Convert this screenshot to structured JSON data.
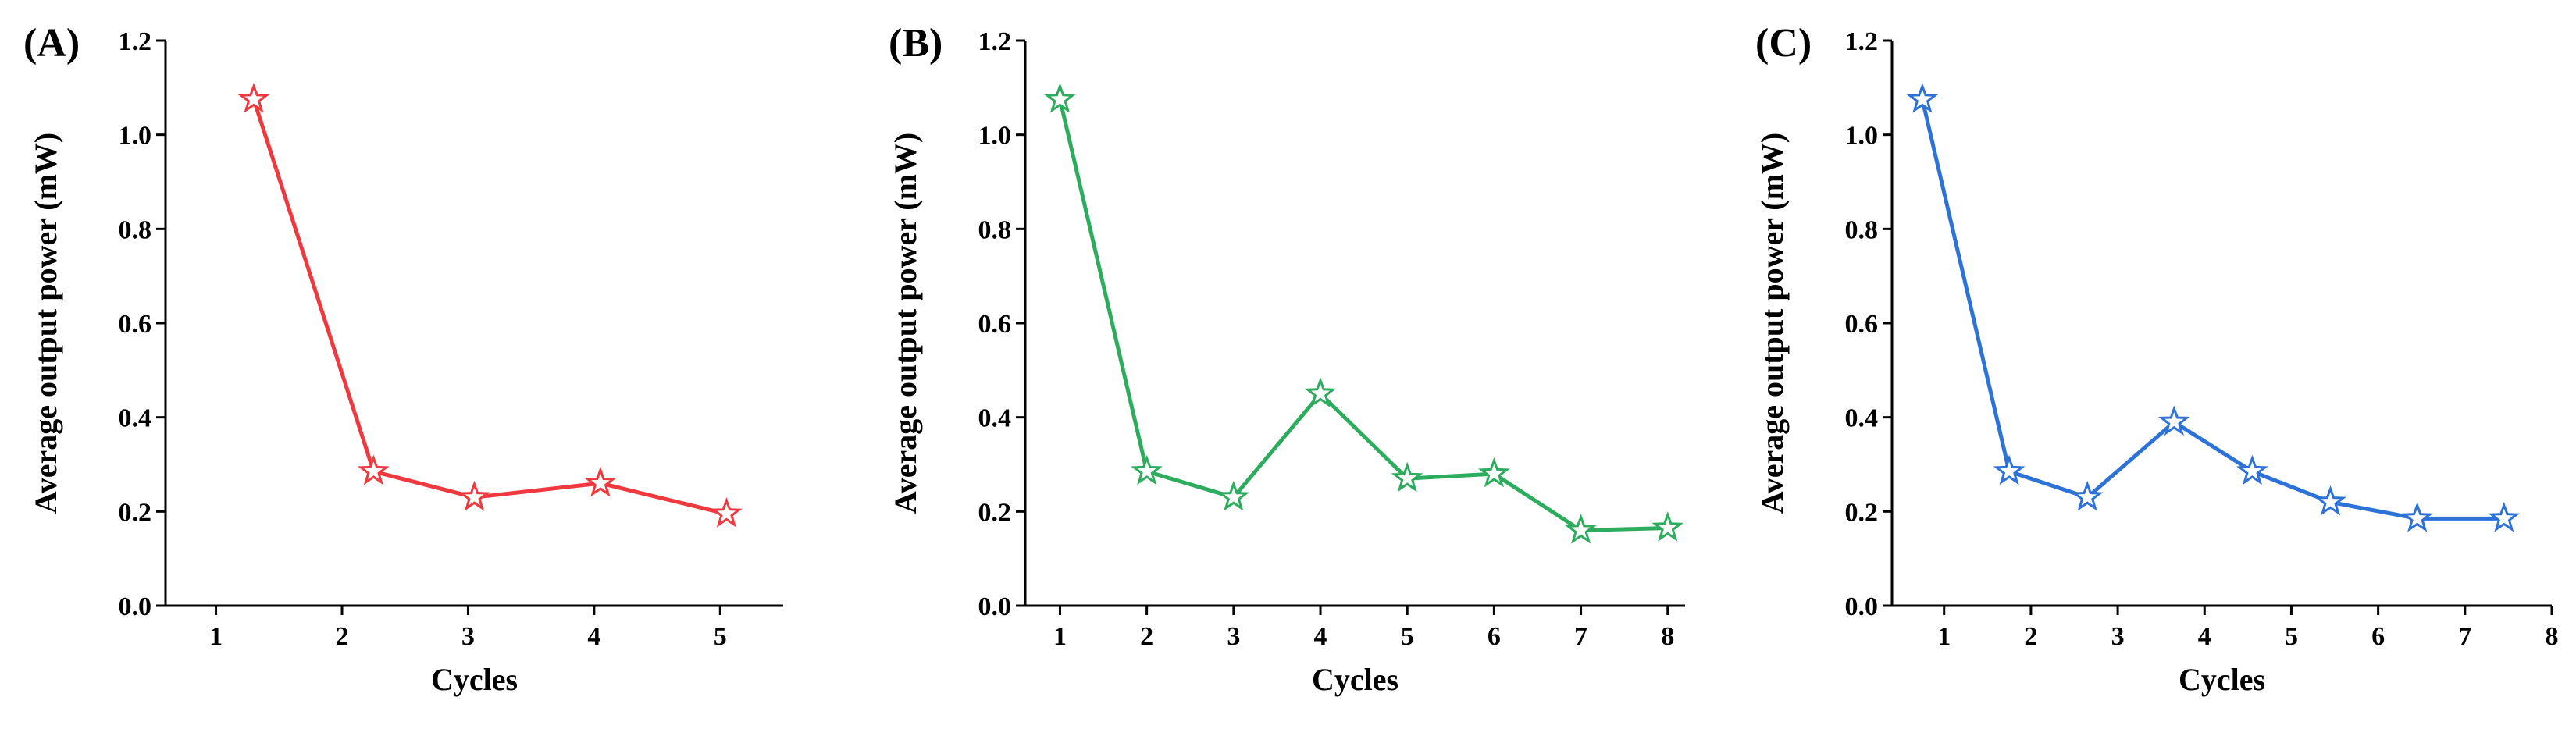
{
  "chart_data": [
    {
      "type": "line",
      "panel_label": "(A)",
      "title": "",
      "xlabel": "Cycles",
      "ylabel": "Average output power (mW)",
      "xlim": [
        0.6,
        5.5
      ],
      "ylim": [
        0.0,
        1.2
      ],
      "xticks": [
        1,
        2,
        3,
        4,
        5
      ],
      "xtick_labels": [
        "1",
        "2",
        "3",
        "4",
        "5"
      ],
      "yticks": [
        0.0,
        0.2,
        0.4,
        0.6,
        0.8,
        1.0,
        1.2
      ],
      "ytick_labels": [
        "0.0",
        "0.2",
        "0.4",
        "0.6",
        "0.8",
        "1.0",
        "1.2"
      ],
      "grid": false,
      "color": "#f0393f",
      "marker": "star",
      "series": [
        {
          "name": "Average output power",
          "x": [
            1.3,
            2.25,
            3.05,
            4.05,
            5.05
          ],
          "values": [
            1.075,
            0.285,
            0.23,
            0.26,
            0.195
          ]
        }
      ]
    },
    {
      "type": "line",
      "panel_label": "(B)",
      "title": "",
      "xlabel": "Cycles",
      "ylabel": "Average output power (mW)",
      "xlim": [
        0.6,
        8.2
      ],
      "ylim": [
        0.0,
        1.2
      ],
      "xticks": [
        1,
        2,
        3,
        4,
        5,
        6,
        7,
        8
      ],
      "xtick_labels": [
        "1",
        "2",
        "3",
        "4",
        "5",
        "6",
        "7",
        "8"
      ],
      "yticks": [
        0.0,
        0.2,
        0.4,
        0.6,
        0.8,
        1.0,
        1.2
      ],
      "ytick_labels": [
        "0.0",
        "0.2",
        "0.4",
        "0.6",
        "0.8",
        "1.0",
        "1.2"
      ],
      "grid": false,
      "color": "#2eac5e",
      "marker": "star",
      "series": [
        {
          "name": "Average output power",
          "x": [
            1,
            2,
            3,
            4,
            5,
            6,
            7,
            8
          ],
          "values": [
            1.075,
            0.285,
            0.23,
            0.45,
            0.27,
            0.28,
            0.16,
            0.165
          ]
        }
      ]
    },
    {
      "type": "line",
      "panel_label": "(C)",
      "title": "",
      "xlabel": "Cycles",
      "ylabel": "Average output power (mW)",
      "xlim": [
        0.4,
        8.0
      ],
      "ylim": [
        0.0,
        1.2
      ],
      "xticks": [
        1,
        2,
        3,
        4,
        5,
        6,
        7,
        8
      ],
      "xtick_labels": [
        "1",
        "2",
        "3",
        "4",
        "5",
        "6",
        "7",
        "8"
      ],
      "yticks": [
        0.0,
        0.2,
        0.4,
        0.6,
        0.8,
        1.0,
        1.2
      ],
      "ytick_labels": [
        "0.0",
        "0.2",
        "0.4",
        "0.6",
        "0.8",
        "1.0",
        "1.2"
      ],
      "grid": false,
      "color": "#2d72d6",
      "marker": "star",
      "series": [
        {
          "name": "Average output power",
          "x": [
            0.75,
            1.75,
            2.65,
            3.65,
            4.55,
            5.45,
            6.45,
            7.45
          ],
          "values": [
            1.075,
            0.285,
            0.23,
            0.39,
            0.285,
            0.22,
            0.185,
            0.185
          ]
        }
      ]
    }
  ]
}
